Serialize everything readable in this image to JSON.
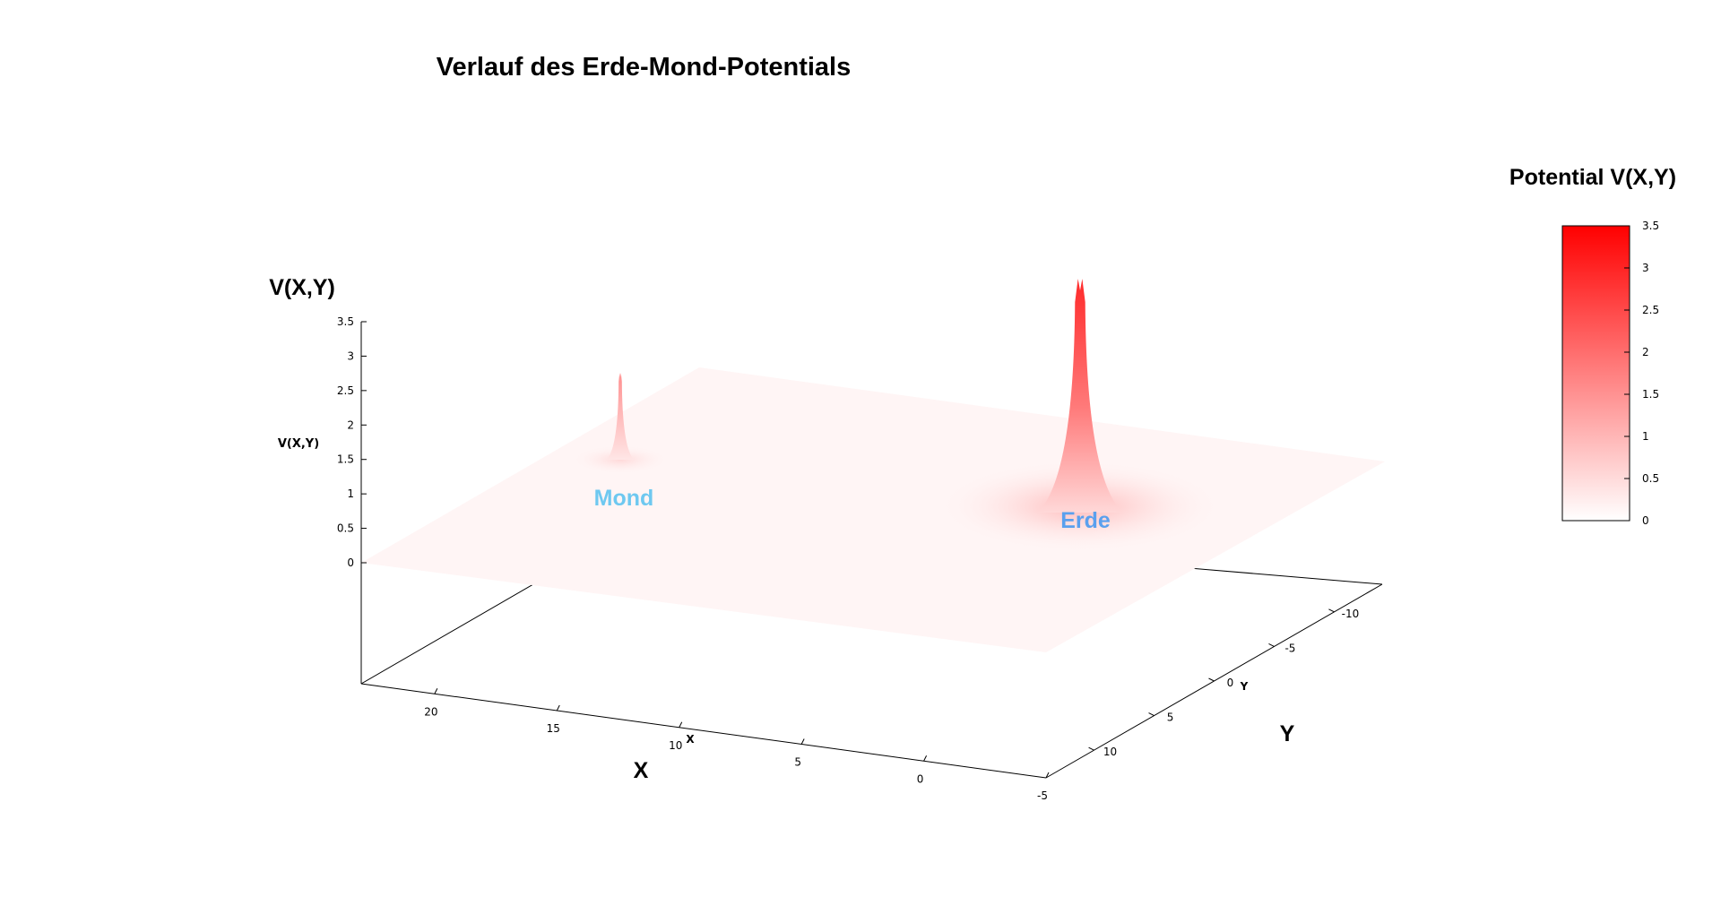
{
  "chart_data": {
    "type": "surface",
    "title": "Verlauf des Erde-Mond-Potentials",
    "xlabel": "X",
    "ylabel": "Y",
    "zlabel": "V(X,Y)",
    "x_axis_small_label": "X",
    "y_axis_small_label": "Y",
    "z_axis_small_label": "V(X,Y)",
    "colorbar_title": "Potential V(X,Y)",
    "xlim": [
      -5,
      23
    ],
    "ylim": [
      -14,
      14
    ],
    "zlim": [
      0,
      3.5
    ],
    "x_ticks": [
      20,
      15,
      10,
      5,
      0,
      -5
    ],
    "y_ticks": [
      -10,
      -5,
      0,
      5,
      10
    ],
    "z_ticks": [
      0,
      0.5,
      1,
      1.5,
      2,
      2.5,
      3,
      3.5
    ],
    "colorbar_ticks": [
      0,
      0.5,
      1,
      1.5,
      2,
      2.5,
      3,
      3.5
    ],
    "color_low": "#ffffff",
    "color_high": "#ff0000",
    "peaks": [
      {
        "name": "Mond",
        "x": 20,
        "y": 0,
        "peak_value": 1.3,
        "label_color": "#6ec8f0"
      },
      {
        "name": "Erde",
        "x": 0,
        "y": 0,
        "peak_value": 3.5,
        "label_color": "#5aa0ee"
      }
    ]
  }
}
